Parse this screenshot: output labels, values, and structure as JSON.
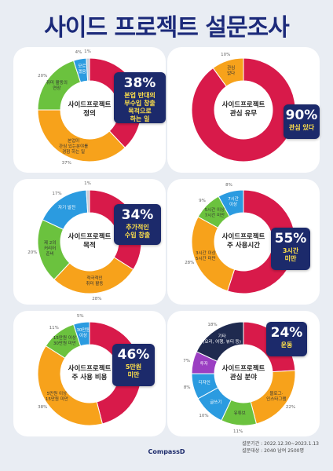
{
  "page": {
    "title": "사이드 프로젝트 설문조사",
    "footer_line1": "설문기간 : 2022.12.30~2023.1.13",
    "footer_line2": "설문대상 : 2040 남여 2500명",
    "logo": "CompassD"
  },
  "colors": {
    "red": "#d81a4a",
    "orange": "#f7a21b",
    "green": "#6bc23e",
    "blue": "#2b9be0",
    "purple": "#9b3fc2",
    "navy": "#1f2a4f",
    "grey": "#c9cdd6"
  },
  "chart_data": [
    {
      "type": "donut",
      "center": "사이드프로젝트\n정의",
      "badge_pct": "38%",
      "badge_text": "본업 반대의\n부수입 창출\n목적으로\n하는 일",
      "slices": [
        {
          "label": "본업 반대의 부수입 창출 목적으로 하는 일",
          "value": 38,
          "color": "#d81a4a",
          "pct": ""
        },
        {
          "label": "본업이\n관심 있는분야를\n경험 하는 일",
          "value": 37,
          "color": "#f7a21b",
          "pct": "37%"
        },
        {
          "label": "취미 활동의\n연장",
          "value": 20,
          "color": "#6bc23e",
          "pct": "20%"
        },
        {
          "label": "모르\n겠음",
          "value": 4,
          "color": "#2b9be0",
          "pct": "4%"
        },
        {
          "label": "",
          "value": 1,
          "color": "#c9cdd6",
          "pct": "1%"
        }
      ]
    },
    {
      "type": "donut",
      "center": "사이드프로젝트\n관심 유무",
      "badge_pct": "90%",
      "badge_text": "관심 있다",
      "slices": [
        {
          "label": "관심 있다",
          "value": 90,
          "color": "#d81a4a",
          "pct": ""
        },
        {
          "label": "관심\n없다",
          "value": 10,
          "color": "#f7a21b",
          "pct": "10%"
        }
      ]
    },
    {
      "type": "donut",
      "center": "사이드프로젝트\n목적",
      "badge_pct": "34%",
      "badge_text": "추가적인\n수입 창출",
      "slices": [
        {
          "label": "추가적인 수입 창출",
          "value": 34,
          "color": "#d81a4a",
          "pct": ""
        },
        {
          "label": "적극적인\n취미 활동",
          "value": 28,
          "color": "#f7a21b",
          "pct": "28%"
        },
        {
          "label": "제 2의\n커리어\n준비",
          "value": 20,
          "color": "#6bc23e",
          "pct": "20%"
        },
        {
          "label": "자기 발전",
          "value": 17,
          "color": "#2b9be0",
          "pct": "17%"
        },
        {
          "label": "",
          "value": 1,
          "color": "#c9cdd6",
          "pct": "1%"
        }
      ]
    },
    {
      "type": "donut",
      "center": "사이드프로젝트\n주 사용시간",
      "badge_pct": "55%",
      "badge_text": "3시간\n미만",
      "slices": [
        {
          "label": "3시간 미만",
          "value": 55,
          "color": "#d81a4a",
          "pct": ""
        },
        {
          "label": "3시간 이상\n5시간 미만",
          "value": 28,
          "color": "#f7a21b",
          "pct": "28%"
        },
        {
          "label": "5시간 이상\n7시간 미만",
          "value": 9,
          "color": "#6bc23e",
          "pct": "9%"
        },
        {
          "label": "7시간\n이상",
          "value": 8,
          "color": "#2b9be0",
          "pct": "8%"
        }
      ]
    },
    {
      "type": "donut",
      "center": "사이드프로젝트\n주 사용 비용",
      "badge_pct": "46%",
      "badge_text": "5만원\n미만",
      "slices": [
        {
          "label": "5만원 미만",
          "value": 46,
          "color": "#d81a4a",
          "pct": ""
        },
        {
          "label": "5만원 이상\n15만원 미만",
          "value": 38,
          "color": "#f7a21b",
          "pct": "38%"
        },
        {
          "label": "15만원 이상\n30만원 미만",
          "value": 11,
          "color": "#6bc23e",
          "pct": "11%"
        },
        {
          "label": "30만원\n이상",
          "value": 5,
          "color": "#2b9be0",
          "pct": "5%"
        }
      ]
    },
    {
      "type": "donut",
      "center": "사이드프로젝트\n관심 분야",
      "badge_pct": "24%",
      "badge_text": "운동",
      "slices": [
        {
          "label": "운동",
          "value": 24,
          "color": "#d81a4a",
          "pct": ""
        },
        {
          "label": "블로그·\n인스타그램",
          "value": 22,
          "color": "#f7a21b",
          "pct": "22%"
        },
        {
          "label": "유튜브",
          "value": 11,
          "color": "#6bc23e",
          "pct": "11%"
        },
        {
          "label": "글쓰기",
          "value": 10,
          "color": "#2b9be0",
          "pct": "10%"
        },
        {
          "label": "디자인",
          "value": 8,
          "color": "#2b9be0",
          "pct": "8%"
        },
        {
          "label": "투자",
          "value": 7,
          "color": "#9b3fc2",
          "pct": "7%"
        },
        {
          "label": "기타\n(요리, 여행, 뷰티 등)",
          "value": 18,
          "color": "#1f2a4f",
          "pct": "18%"
        }
      ]
    }
  ]
}
